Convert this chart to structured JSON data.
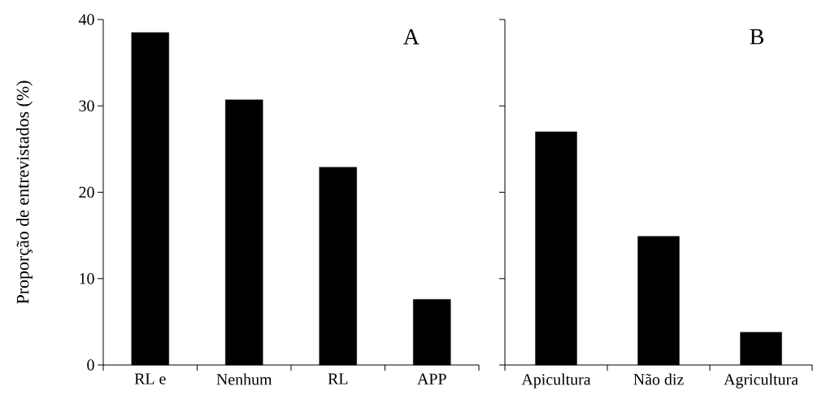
{
  "chart_data": [
    {
      "type": "bar",
      "categories": [
        "RL e",
        "Nenhum",
        "RL",
        "APP"
      ],
      "values": [
        38.5,
        30.7,
        22.9,
        7.6
      ],
      "color": "#000000",
      "ylabel": "Proporção de entrevistados (%)",
      "ylim": [
        0,
        40
      ],
      "yticks": [
        0,
        10,
        20,
        30,
        40
      ],
      "annotations": [
        "A"
      ]
    },
    {
      "type": "bar",
      "categories": [
        "Apicultura",
        "Não diz",
        "Agricultura"
      ],
      "values": [
        27.0,
        14.9,
        3.8
      ],
      "color": "#000000",
      "ylim": [
        0,
        40
      ],
      "yticks": [
        0,
        10,
        20,
        30,
        40
      ],
      "tick_labels": "x",
      "annotations": [
        "B"
      ]
    }
  ]
}
